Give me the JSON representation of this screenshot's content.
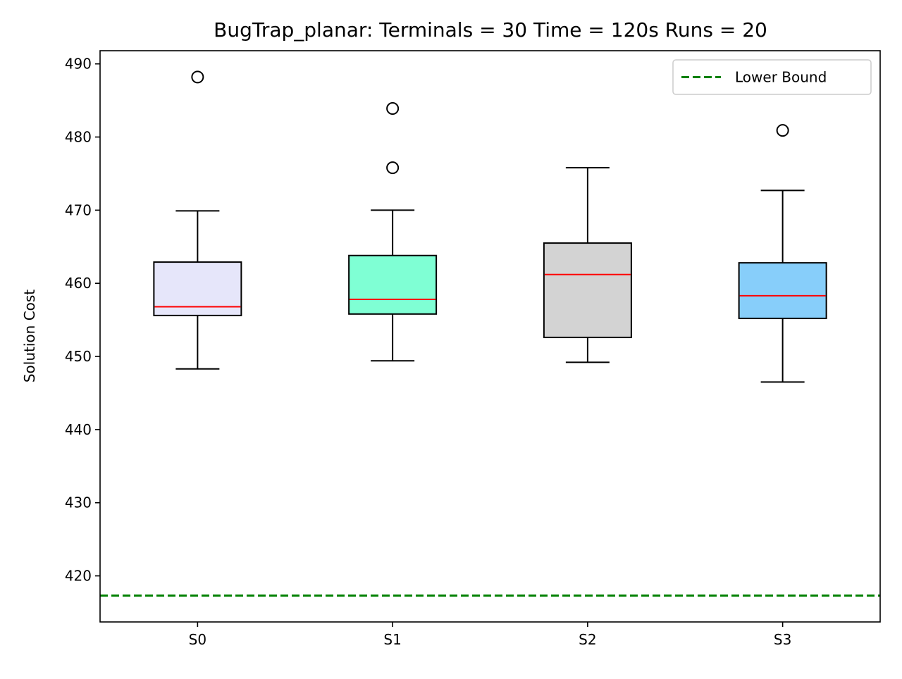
{
  "chart_data": {
    "type": "box",
    "title": "BugTrap_planar:  Terminals = 30  Time = 120s  Runs = 20",
    "xlabel": "",
    "ylabel": "Solution Cost",
    "ylim": [
      413.7,
      491.8
    ],
    "yticks": [
      420,
      430,
      440,
      450,
      460,
      470,
      480,
      490
    ],
    "grid": false,
    "legend": {
      "placement": "top-right",
      "entries": [
        "Lower Bound"
      ]
    },
    "categories": [
      "S0",
      "S1",
      "S2",
      "S3"
    ],
    "boxes": [
      {
        "name": "S0",
        "whisker_low": 448.3,
        "q1": 455.6,
        "median": 456.8,
        "q3": 462.9,
        "whisker_high": 469.9,
        "outliers": [
          488.2
        ],
        "fill": "#e6e6fa"
      },
      {
        "name": "S1",
        "whisker_low": 449.4,
        "q1": 455.8,
        "median": 457.8,
        "q3": 463.8,
        "whisker_high": 470.0,
        "outliers": [
          483.9,
          475.8
        ],
        "fill": "#7fffd4"
      },
      {
        "name": "S2",
        "whisker_low": 449.2,
        "q1": 452.6,
        "median": 461.2,
        "q3": 465.5,
        "whisker_high": 475.8,
        "outliers": [],
        "fill": "#d3d3d3"
      },
      {
        "name": "S3",
        "whisker_low": 446.5,
        "q1": 455.2,
        "median": 458.3,
        "q3": 462.8,
        "whisker_high": 472.7,
        "outliers": [
          480.9
        ],
        "fill": "#87cefa"
      }
    ],
    "lower_bound": 417.3,
    "colors": {
      "median": "#ff0000",
      "lower_bound": "#008000",
      "box_edge": "#000000"
    }
  }
}
